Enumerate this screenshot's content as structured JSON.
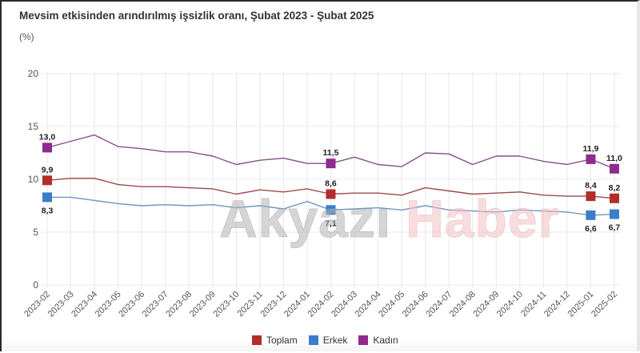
{
  "header": {
    "title": "Mevsim etkisinden arındırılmış işsizlik oranı, Şubat 2023 - Şubat 2025",
    "unit": "(%)"
  },
  "watermark": {
    "part1": "Akyazı",
    "part2": "Haber"
  },
  "colors": {
    "toplam": "#b22d2a",
    "erkek": "#3d7cc9",
    "kadin": "#902a8f",
    "toplam_line": "#9b4c4a",
    "erkek_line": "#6f95c2",
    "kadin_line": "#85508a",
    "grid": "#e8e8e8",
    "axis_text": "#555555"
  },
  "legend": [
    {
      "key": "toplam",
      "label": "Toplam"
    },
    {
      "key": "erkek",
      "label": "Erkek"
    },
    {
      "key": "kadin",
      "label": "Kadın"
    }
  ],
  "chart_data": {
    "type": "line",
    "title": "Mevsim etkisinden arındırılmış işsizlik oranı, Şubat 2023 - Şubat 2025",
    "subtitle": "(%)",
    "xlabel": "",
    "ylabel": "%",
    "ylim": [
      0,
      20
    ],
    "yticks": [
      0,
      5,
      10,
      15,
      20
    ],
    "grid": true,
    "legend_position": "bottom",
    "categories": [
      "2023-02",
      "2023-03",
      "2023-04",
      "2023-05",
      "2023-06",
      "2023-07",
      "2023-08",
      "2023-09",
      "2023-10",
      "2023-11",
      "2023-12",
      "2024-01",
      "2024-02",
      "2024-03",
      "2024-04",
      "2024-05",
      "2024-06",
      "2024-07",
      "2024-08",
      "2024-09",
      "2024-10",
      "2024-11",
      "2024-12",
      "2025-01",
      "2025-02"
    ],
    "series": [
      {
        "name": "Toplam",
        "key": "toplam",
        "values": [
          9.9,
          10.1,
          10.1,
          9.5,
          9.3,
          9.3,
          9.2,
          9.1,
          8.6,
          9.0,
          8.8,
          9.1,
          8.6,
          8.7,
          8.7,
          8.5,
          9.2,
          8.9,
          8.6,
          8.7,
          8.8,
          8.5,
          8.4,
          8.4,
          8.2
        ],
        "labeled_points": {
          "0": "9,9",
          "12": "8,6",
          "23": "8,4",
          "24": "8,2"
        }
      },
      {
        "name": "Erkek",
        "key": "erkek",
        "values": [
          8.3,
          8.3,
          8.0,
          7.7,
          7.5,
          7.6,
          7.5,
          7.6,
          7.3,
          7.5,
          7.2,
          7.9,
          7.1,
          7.2,
          7.3,
          7.1,
          7.5,
          7.1,
          7.0,
          6.9,
          7.1,
          7.0,
          6.9,
          6.6,
          6.7
        ],
        "labeled_points": {
          "0": "8,3",
          "12": "7,1",
          "23": "6,6",
          "24": "6,7"
        }
      },
      {
        "name": "Kadın",
        "key": "kadin",
        "values": [
          13.0,
          13.6,
          14.2,
          13.1,
          12.9,
          12.6,
          12.6,
          12.2,
          11.4,
          11.8,
          12.0,
          11.5,
          11.5,
          12.1,
          11.4,
          11.2,
          12.5,
          12.4,
          11.4,
          12.2,
          12.2,
          11.7,
          11.4,
          11.9,
          11.0
        ],
        "labeled_points": {
          "0": "13,0",
          "12": "11,5",
          "23": "11,9",
          "24": "11,0"
        }
      }
    ]
  }
}
